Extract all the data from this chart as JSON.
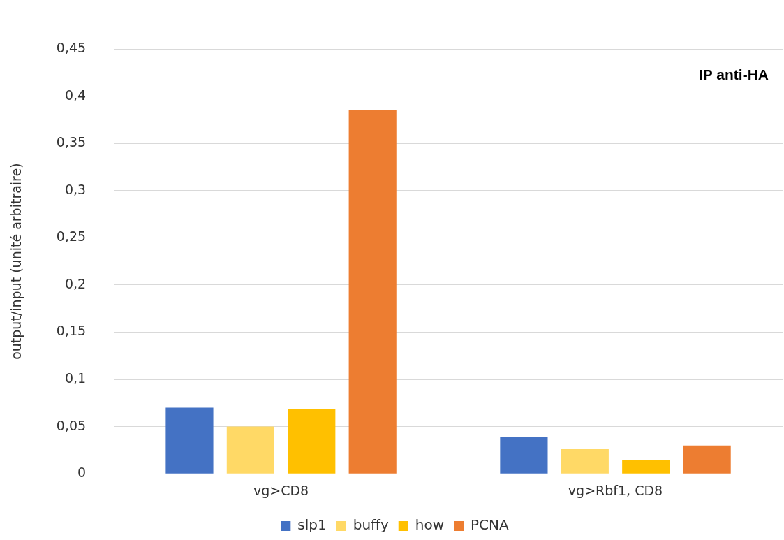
{
  "chart_data": {
    "type": "bar",
    "ylabel": "output/input (unité arbitraire)",
    "annotations": [
      "IP anti-HA"
    ],
    "categories": [
      "vg>CD8",
      "vg>Rbf1, CD8"
    ],
    "series": [
      {
        "name": "slp1",
        "color": "#4472c4",
        "values": [
          0.07,
          0.039
        ]
      },
      {
        "name": "buffy",
        "color": "#ffd966",
        "values": [
          0.05,
          0.026
        ]
      },
      {
        "name": "how",
        "color": "#ffc000",
        "values": [
          0.069,
          0.0145
        ]
      },
      {
        "name": "PCNA",
        "color": "#ed7d31",
        "values": [
          0.385,
          0.03
        ]
      }
    ],
    "ylim": [
      0,
      0.45
    ],
    "yticks": [
      0,
      {
        "value": 0.05,
        "label": "0,05"
      },
      {
        "value": 0.1,
        "label": "0,1"
      },
      {
        "value": 0.15,
        "label": "0,15"
      },
      {
        "value": 0.2,
        "label": "0,2"
      },
      {
        "value": 0.25,
        "label": "0,25"
      },
      {
        "value": 0.3,
        "label": "0,3"
      },
      {
        "value": 0.35,
        "label": "0,35"
      },
      {
        "value": 0.4,
        "label": "0,4"
      },
      {
        "value": 0.45,
        "label": "0,45"
      }
    ],
    "grid": "y",
    "legend": "bottom"
  }
}
